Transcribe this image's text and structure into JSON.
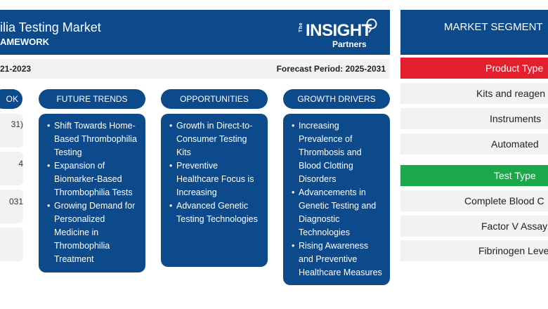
{
  "header": {
    "title": "ilia Testing Market",
    "subtitle": "AMEWORK"
  },
  "logo": {
    "the": "The",
    "insight": "INSIGHT",
    "partners": "Partners"
  },
  "period": {
    "historic": "21-2023",
    "forecast": "Forecast Period: 2025-2031"
  },
  "outlook": {
    "label": "OK",
    "boxes": [
      {
        "line1": "31)",
        "line2": ""
      },
      {
        "line1": "4",
        "line2": ""
      },
      {
        "line1": "031",
        "line2": ""
      },
      {
        "line1": "",
        "line2": ""
      }
    ]
  },
  "columns": [
    {
      "label": "FUTURE TRENDS",
      "items": [
        "Shift Towards Home-Based Thrombophilia Testing",
        "Expansion of Biomarker-Based Thrombophilia Tests",
        "Growing Demand for Personalized Medicine in Thrombophilia Treatment"
      ]
    },
    {
      "label": "OPPORTUNITIES",
      "items": [
        "Growth in Direct-to-Consumer Testing Kits",
        "Preventive Healthcare Focus is Increasing",
        "Advanced Genetic Testing Technologies"
      ]
    },
    {
      "label": "GROWTH DRIVERS",
      "items": [
        "Increasing Prevalence of Thrombosis and Blood Clotting Disorders",
        "Advancements in Genetic Testing and Diagnostic Technologies",
        "Rising Awareness and Preventive Healthcare Measures"
      ]
    }
  ],
  "segmentation": {
    "title": "MARKET SEGMENT",
    "groups": [
      {
        "name": "Product Type",
        "color": "#e5202e",
        "items": [
          "Kits and reagen",
          "Instruments",
          "Automated"
        ]
      },
      {
        "name": "Test Type",
        "color": "#1aa84a",
        "items": [
          "Complete Blood C",
          "Factor V Assay",
          "Fibrinogen Leve"
        ]
      }
    ]
  }
}
